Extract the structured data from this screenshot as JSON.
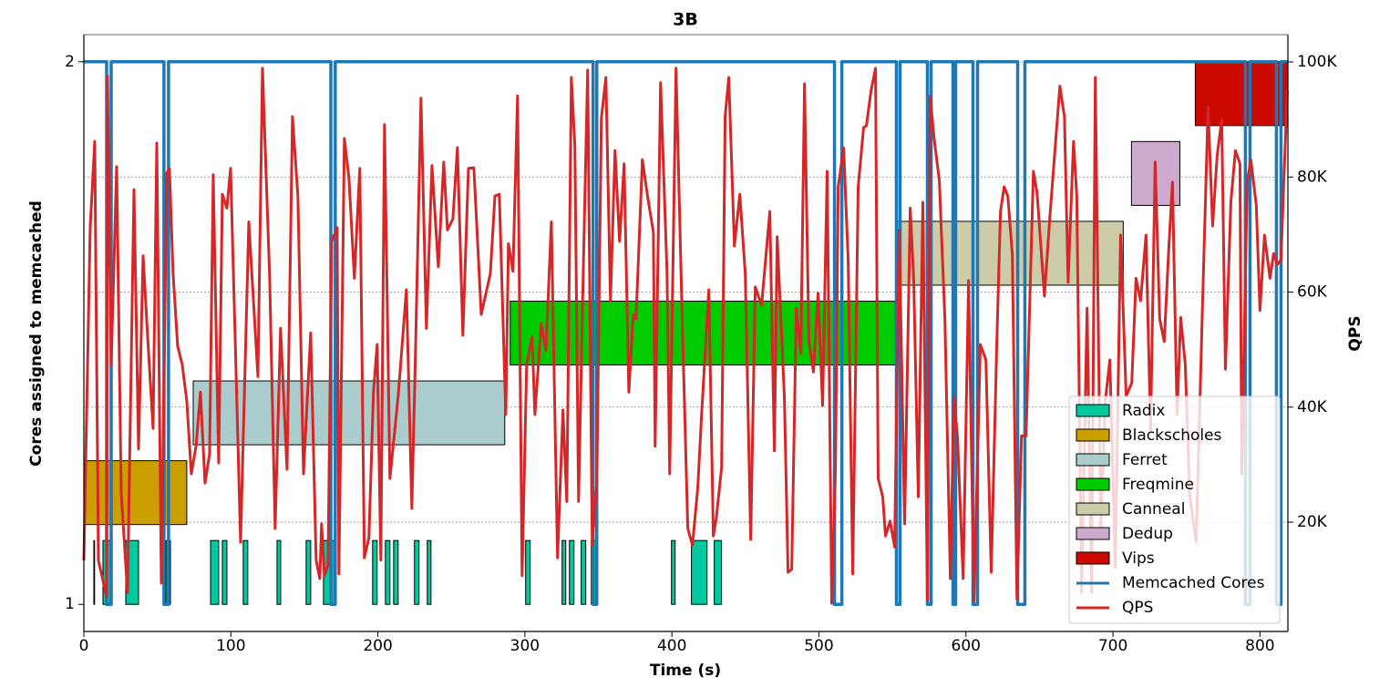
{
  "chart_data": {
    "type": "gantt",
    "title": "3B",
    "x_label": "Time (s)",
    "y_label": "Cores assigned to memcached",
    "y2_label": "QPS",
    "xlim": [
      0,
      819
    ],
    "xticks": [
      0,
      100,
      200,
      300,
      400,
      500,
      600,
      700,
      800
    ],
    "ylim": [
      0.95,
      2.05
    ],
    "yticks": [
      1,
      2
    ],
    "y2lim": [
      1000,
      104750
    ],
    "y2ticks": [
      {
        "value": 20000,
        "label": "20K"
      },
      {
        "value": 40000,
        "label": "40K"
      },
      {
        "value": 60000,
        "label": "60K"
      },
      {
        "value": 80000,
        "label": "80K"
      },
      {
        "value": 100000,
        "label": "100K"
      }
    ],
    "y2grid": true,
    "legend": "lower right",
    "jobs": [
      {
        "name": "Radix",
        "color": "#00c9a0",
        "start": [
          6.8,
          13.0,
          28.5,
          55.8,
          86.2,
          94.2,
          108.4,
          131.4,
          151.2,
          163.0,
          196.4,
          205.1,
          210.7,
          224.9,
          233.6,
          300.5,
          325.3,
          330.3,
          338.3,
          345.2,
          399.7,
          413.3,
          428.8
        ],
        "end": [
          7.3,
          19.2,
          37.2,
          58.9,
          91.7,
          97.3,
          111.5,
          133.9,
          154.3,
          170.4,
          199.5,
          208.2,
          213.8,
          228.0,
          236.1,
          303.6,
          327.8,
          333.4,
          341.4,
          348.9,
          402.2,
          423.9,
          433.7
        ]
      },
      {
        "name": "Blackscholes",
        "color": "#cc9f00",
        "start": [
          0
        ],
        "end": [
          70.0
        ]
      },
      {
        "name": "Ferret",
        "color": "#aacccc",
        "start": [
          74.4
        ],
        "end": [
          286.3
        ]
      },
      {
        "name": "Freqmine",
        "color": "#00cc00",
        "start": [
          290.0
        ],
        "end": [
          552.0
        ]
      },
      {
        "name": "Canneal",
        "color": "#cccca9",
        "start": [
          553.4
        ],
        "end": [
          707.0
        ]
      },
      {
        "name": "Dedup",
        "color": "#ccabcc",
        "start": [
          712.6
        ],
        "end": [
          745.5
        ]
      },
      {
        "name": "Vips",
        "color": "#cc0a00",
        "start": [
          756.0
        ],
        "end": [
          819.0
        ]
      }
    ],
    "series": [
      {
        "name": "Memcached Cores",
        "color": "#1f77b4",
        "step": "post",
        "x": [
          0,
          15.5,
          18.6,
          54.5,
          57.6,
          168.0,
          171.0,
          346.4,
          348.9,
          510.6,
          515.6,
          552.7,
          555.2,
          573.8,
          576.3,
          591.2,
          593.0,
          604.8,
          607.9,
          635.2,
          640.1,
          790.1,
          793.2,
          811.2,
          814.3,
          819.0
        ],
        "values": [
          2,
          1,
          2,
          1,
          2,
          1,
          2,
          1,
          2,
          1,
          2,
          1,
          2,
          1,
          2,
          1,
          2,
          1,
          2,
          1,
          2,
          1,
          2,
          1,
          2,
          2
        ]
      },
      {
        "name": "QPS",
        "color": "#d62728",
        "axis": "y2",
        "x": [
          0,
          4.3,
          7.4,
          9.9,
          15.5,
          16.1,
          18.6,
          22.3,
          25.4,
          29.7,
          34.1,
          37.2,
          40.3,
          43.4,
          47.1,
          49.6,
          52.7,
          56.4,
          58.2,
          60.7,
          63.8,
          66.9,
          70.0,
          73.1,
          76.3,
          79.3,
          82.4,
          85.5,
          88.0,
          91.7,
          94.2,
          97.3,
          99.8,
          102.9,
          106.6,
          112.2,
          118.4,
          121.5,
          126.4,
          130.1,
          133.8,
          138.2,
          141.9,
          145.6,
          149.4,
          154.3,
          158.0,
          160.5,
          161.7,
          163.6,
          166.1,
          168.6,
          172.3,
          173.5,
          177.2,
          180.3,
          184.0,
          187.7,
          190.8,
          193.9,
          197.0,
          199.5,
          202.0,
          204.5,
          208.2,
          213.8,
          219.4,
          223.1,
          225.6,
          229.3,
          233.0,
          236.8,
          241.1,
          244.8,
          247.3,
          251.0,
          254.1,
          257.8,
          261.6,
          265.3,
          270.3,
          276.5,
          279.6,
          282.6,
          287.0,
          288.8,
          291.9,
          295.0,
          298.1,
          301.2,
          304.9,
          306.8,
          311.1,
          314.3,
          318.0,
          322.2,
          325.9,
          328.5,
          331.6,
          334.0,
          336.5,
          339.0,
          342.7,
          345.8,
          348.9,
          352.0,
          355.1,
          358.2,
          361.3,
          364.4,
          367.5,
          370.7,
          373.7,
          375.6,
          379.9,
          383.6,
          387.4,
          388.6,
          392.3,
          396.7,
          398.5,
          402.8,
          406.5,
          410.8,
          414.0,
          417.6,
          420.2,
          425.1,
          428.2,
          430.1,
          433.8,
          436.2,
          438.7,
          442.5,
          446.2,
          449.9,
          453.6,
          456.7,
          461.0,
          466.6,
          469.7,
          471.6,
          476.5,
          479.0,
          481.5,
          484.6,
          487.7,
          490.2,
          493.2,
          496.3,
          499.4,
          502.5,
          505.6,
          508.7,
          511.2,
          513.1,
          516.8,
          519.9,
          523.0,
          526.7,
          530.4,
          532.3,
          535.4,
          538.5,
          540.3,
          543.4,
          545.3,
          548.4,
          551.5,
          554.6,
          558.3,
          562.1,
          564.5,
          567.6,
          570.7,
          573.8,
          575.7,
          578.2,
          581.9,
          585.7,
          589.4,
          591.8,
          594.3,
          598.1,
          601.8,
          605.5,
          609.8,
          613.6,
          617.2,
          621.1,
          623.5,
          626.0,
          628.5,
          631.6,
          634.7,
          637.8,
          640.9,
          645.9,
          648.4,
          653.4,
          657.1,
          660.2,
          663.9,
          667.0,
          669.5,
          673.2,
          675.4,
          678.7,
          682.4,
          685.5,
          688.0,
          691.7,
          694.8,
          697.9,
          701.6,
          705.2,
          709.0,
          712.8,
          715.7,
          718.8,
          722.5,
          725.6,
          728.7,
          731.8,
          734.9,
          738.0,
          740.5,
          743.6,
          746.1,
          749.2,
          752.3,
          756.6,
          761.0,
          764.7,
          767.8,
          770.9,
          774.0,
          776.5,
          780.2,
          783.3,
          786.4,
          787.6,
          791.3,
          793.8,
          797.5,
          800.0,
          803.1,
          806.8,
          809.3,
          811.8,
          814.3,
          816.2,
          818.6
        ],
        "values": [
          13350,
          71170,
          86200,
          13350,
          7000,
          97600,
          47400,
          81800,
          25200,
          7800,
          77800,
          32700,
          66300,
          52200,
          36300,
          85900,
          9400,
          80700,
          81500,
          63200,
          50600,
          47400,
          41100,
          28400,
          33200,
          42600,
          26800,
          31800,
          80400,
          30300,
          77000,
          74600,
          81500,
          52200,
          16500,
          72200,
          45300,
          98900,
          62400,
          18900,
          53700,
          29200,
          90500,
          76700,
          28400,
          52900,
          13400,
          10200,
          19700,
          10700,
          12600,
          68800,
          71200,
          11000,
          86700,
          79900,
          62400,
          81500,
          13800,
          17300,
          42600,
          50900,
          13400,
          89100,
          27600,
          41900,
          60400,
          22400,
          49800,
          93700,
          53700,
          82000,
          64400,
          82600,
          70800,
          72700,
          85100,
          52500,
          81500,
          81600,
          56100,
          63200,
          76700,
          77000,
          38700,
          68400,
          63600,
          94100,
          10700,
          47400,
          52200,
          38700,
          54500,
          49800,
          72200,
          13800,
          39500,
          23600,
          97300,
          85400,
          23600,
          55300,
          98600,
          16000,
          26800,
          90200,
          97300,
          58500,
          84600,
          68800,
          82300,
          42600,
          56100,
          55300,
          83000,
          76400,
          70400,
          33200,
          96400,
          63200,
          28400,
          98900,
          60400,
          18900,
          16000,
          26000,
          38700,
          60400,
          17600,
          20500,
          29500,
          90500,
          97300,
          68000,
          77000,
          63200,
          17000,
          60900,
          57700,
          74000,
          32400,
          69600,
          41900,
          11300,
          11800,
          57200,
          49300,
          96200,
          51400,
          46100,
          59800,
          40300,
          81000,
          5900,
          28700,
          78300,
          85100,
          65600,
          11000,
          78300,
          88600,
          88900,
          94900,
          98900,
          27600,
          24400,
          17600,
          20200,
          15700,
          70800,
          19700,
          74600,
          62000,
          24400,
          75600,
          6500,
          94100,
          87000,
          79400,
          55300,
          10200,
          41900,
          34700,
          10200,
          62000,
          6200,
          50900,
          48200,
          11300,
          52200,
          74000,
          78300,
          76700,
          66400,
          6700,
          35000,
          35000,
          81000,
          77200,
          59300,
          73100,
          83500,
          95800,
          90500,
          61700,
          86200,
          76700,
          7800,
          57200,
          7800,
          97300,
          18900,
          41100,
          48200,
          12200,
          69900,
          41900,
          44200,
          62400,
          58500,
          69900,
          35900,
          82600,
          55300,
          51400,
          67700,
          79100,
          38700,
          55600,
          47400,
          24400,
          16500,
          58500,
          92100,
          71500,
          83800,
          89900,
          46600,
          75600,
          84600,
          82300,
          28400,
          79100,
          83000,
          75100,
          56800,
          69900,
          62400,
          66700,
          64800,
          65600,
          79100,
          95000
        ]
      }
    ]
  }
}
